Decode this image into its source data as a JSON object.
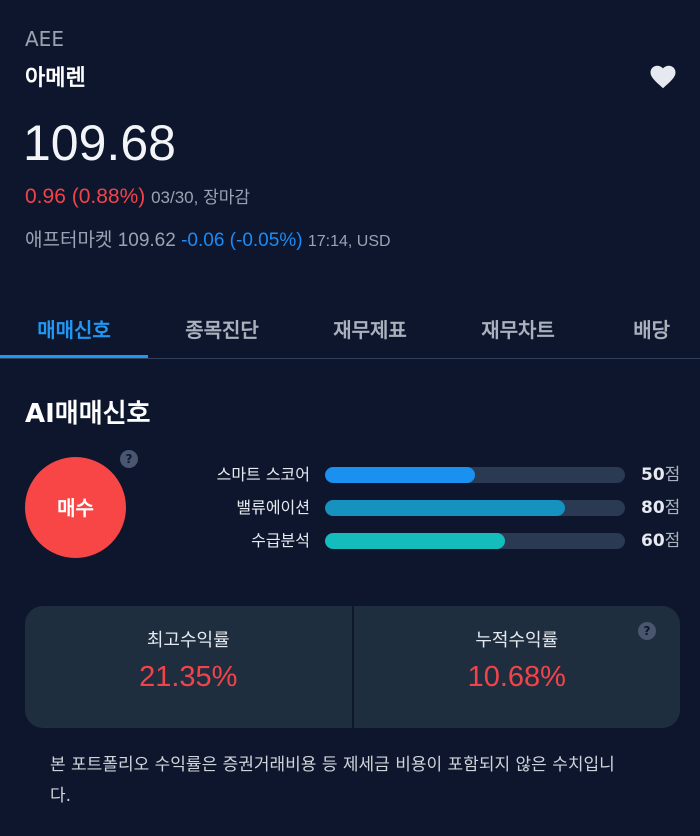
{
  "header": {
    "ticker": "AEE",
    "name": "아메렌",
    "price": "109.68",
    "change": "0.96 (0.88%)",
    "date_status": "03/30, 장마감",
    "after_label": "애프터마켓",
    "after_price": "109.62",
    "after_change": "-0.06 (-0.05%)",
    "after_time": "17:14, USD"
  },
  "tabs": [
    {
      "label": "매매신호",
      "active": true
    },
    {
      "label": "종목진단"
    },
    {
      "label": "재무제표"
    },
    {
      "label": "재무차트"
    },
    {
      "label": "배당"
    }
  ],
  "ai": {
    "title": "AI매매신호",
    "signal": "매수",
    "help": "?",
    "scores": [
      {
        "label": "스마트 스코어",
        "value": "50",
        "unit": "점",
        "percent": 50,
        "color": "#1a90f0"
      },
      {
        "label": "밸류에이션",
        "value": "80",
        "unit": "점",
        "percent": 80,
        "color": "#1592c0"
      },
      {
        "label": "수급분석",
        "value": "60",
        "unit": "점",
        "percent": 60,
        "color": "#14bcbc"
      }
    ]
  },
  "returns": {
    "max_label": "최고수익률",
    "max_value": "21.35%",
    "cum_label": "누적수익률",
    "cum_value": "10.68%",
    "help": "?"
  },
  "note": "본 포트폴리오 수익률은 증권거래비용 등 제세금 비용이 포함되지 않은 수치입니다."
}
